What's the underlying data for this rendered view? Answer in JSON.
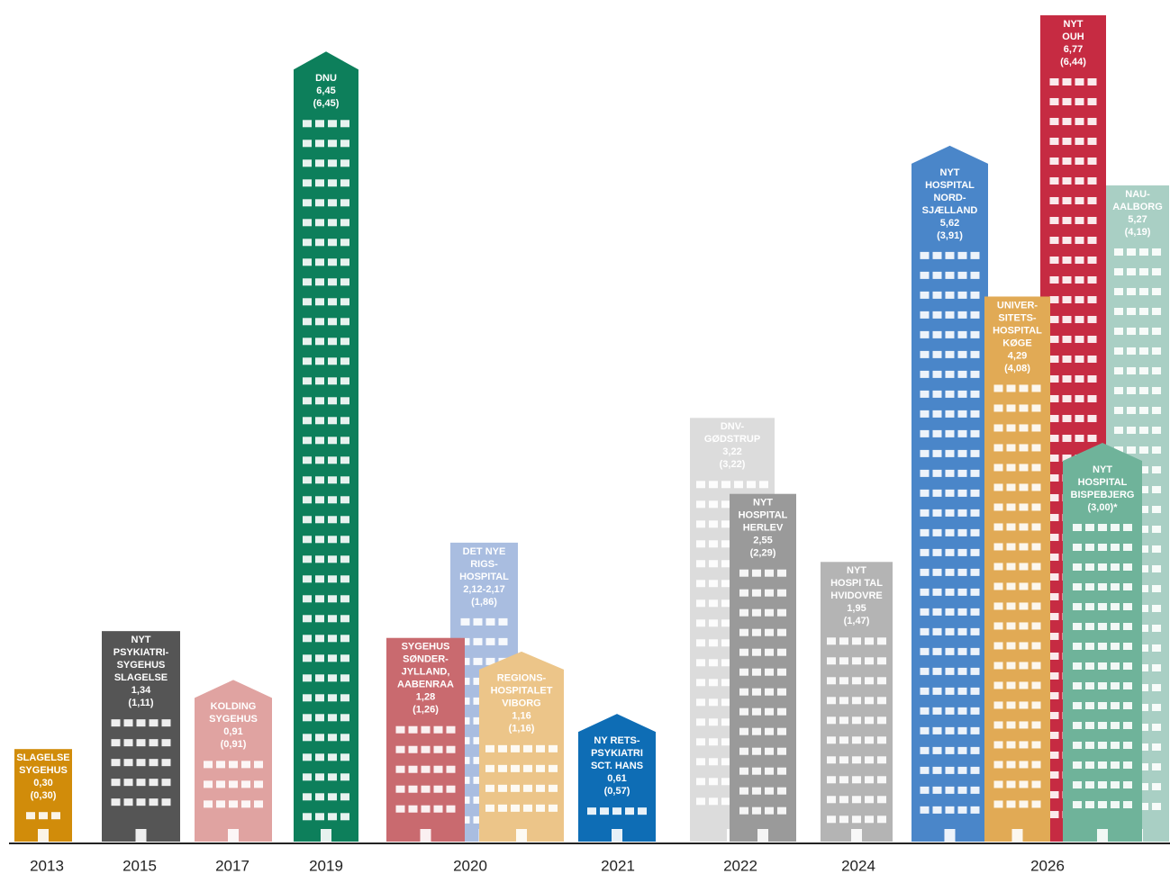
{
  "chart_data": {
    "type": "building",
    "categories": [
      "2013",
      "2015",
      "2017",
      "2019",
      "2020",
      "2021",
      "2022",
      "2024",
      "2026"
    ],
    "buildings": [
      {
        "name": [
          "SLAGELSE",
          "SYGEHUS"
        ],
        "value": 0.3,
        "value_label": "0,30",
        "secondary": 0.3,
        "secondary_label": "(0,30)",
        "color": "#d18c0a"
      },
      {
        "name": [
          "NYT",
          "PSYKIATRI-",
          "SYGEHUS",
          "SLAGELSE"
        ],
        "value": 1.34,
        "value_label": "1,34",
        "secondary": 1.11,
        "secondary_label": "(1,11)",
        "color": "#555555"
      },
      {
        "name": [
          "KOLDING",
          "SYGEHUS"
        ],
        "value": 0.91,
        "value_label": "0,91",
        "secondary": 0.91,
        "secondary_label": "(0,91)",
        "color": "#e0a3a1"
      },
      {
        "name": [
          "DNU"
        ],
        "value": 6.45,
        "value_label": "6,45",
        "secondary": 6.45,
        "secondary_label": "(6,45)",
        "color": "#0d7f5b"
      },
      {
        "name": [
          "DET NYE",
          "RIGS-",
          "HOSPITAL"
        ],
        "value": 2.12,
        "value_label": "2,12-2,17",
        "secondary": 1.86,
        "secondary_label": "(1,86)",
        "color": "#a9bde0"
      },
      {
        "name": [
          "SYGEHUS",
          "SØNDER-",
          "JYLLAND,",
          "AABENRAA"
        ],
        "value": 1.28,
        "value_label": "1,28",
        "secondary": 1.26,
        "secondary_label": "(1,26)",
        "color": "#c96a6f"
      },
      {
        "name": [
          "REGIONS-",
          "HOSPITALET",
          "VIBORG"
        ],
        "value": 1.16,
        "value_label": "1,16",
        "secondary": 1.16,
        "secondary_label": "(1,16)",
        "color": "#ecc589"
      },
      {
        "name": [
          "NY RETS-",
          "PSYKIATRI",
          "SCT. HANS"
        ],
        "value": 0.61,
        "value_label": "0,61",
        "secondary": 0.57,
        "secondary_label": "(0,57)",
        "color": "#0e6db5"
      },
      {
        "name": [
          "DNV-",
          "GØDSTRUP"
        ],
        "value": 3.22,
        "value_label": "3,22",
        "secondary": 3.22,
        "secondary_label": "(3,22)",
        "color": "#dcdcdc"
      },
      {
        "name": [
          "NYT",
          "HOSPITAL",
          "HERLEV"
        ],
        "value": 2.55,
        "value_label": "2,55",
        "secondary": 2.29,
        "secondary_label": "(2,29)",
        "color": "#9a9a9a"
      },
      {
        "name": [
          "NYT",
          "HOSPI TAL",
          "HVIDOVRE"
        ],
        "value": 1.95,
        "value_label": "1,95",
        "secondary": 1.47,
        "secondary_label": "(1,47)",
        "color": "#b4b4b4"
      },
      {
        "name": [
          "NYT",
          "HOSPITAL",
          "NORD-",
          "SJÆLLAND"
        ],
        "value": 5.62,
        "value_label": "5,62",
        "secondary": 3.91,
        "secondary_label": "(3,91)",
        "color": "#4a86c9"
      },
      {
        "name": [
          "NAU-",
          "AALBORG"
        ],
        "value": 5.27,
        "value_label": "5,27",
        "secondary": 4.19,
        "secondary_label": "(4,19)",
        "color": "#a9cfc4"
      },
      {
        "name": [
          "NYT",
          "OUH"
        ],
        "value": 6.77,
        "value_label": "6,77",
        "secondary": 6.44,
        "secondary_label": "(6,44)",
        "color": "#c62b42"
      },
      {
        "name": [
          "UNIVER-",
          "SITETS-",
          "HOSPITAL",
          "KØGE"
        ],
        "value": 4.29,
        "value_label": "4,29",
        "secondary": 4.08,
        "secondary_label": "(4,08)",
        "color": "#e1aa55"
      },
      {
        "name": [
          "NYT",
          "HOSPITAL",
          "BISPEBJERG"
        ],
        "value": null,
        "value_label": null,
        "secondary": 3.0,
        "secondary_label": "(3,00)*",
        "color": "#6fb39a"
      }
    ]
  }
}
